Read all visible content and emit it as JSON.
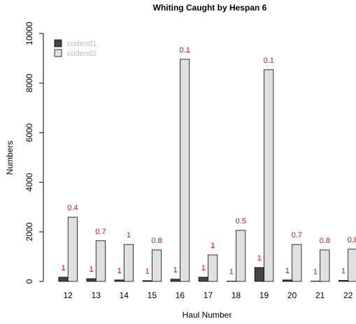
{
  "chart_data": {
    "type": "bar",
    "title": "Whiting Caught by Hespan 6",
    "xlabel": "Haul Number",
    "ylabel": "Numbers",
    "categories": [
      "12",
      "13",
      "14",
      "15",
      "16",
      "17",
      "18",
      "19",
      "20",
      "21",
      "22"
    ],
    "series": [
      {
        "name": "codend1",
        "color": "#444444",
        "values": [
          170,
          110,
          60,
          30,
          90,
          170,
          10,
          560,
          60,
          10,
          40
        ],
        "annotations": [
          "1",
          "1",
          "1",
          "1",
          "1",
          "1",
          "1",
          "1",
          "1",
          "1",
          "1"
        ]
      },
      {
        "name": "codend2",
        "color": "#e0e0e0",
        "values": [
          2590,
          1640,
          1490,
          1270,
          8960,
          1070,
          2060,
          8540,
          1490,
          1270,
          1300
        ],
        "annotations": [
          "0.4",
          "0.7",
          "1",
          "0.8",
          "0.1",
          "1",
          "0.5",
          "0.1",
          "0.7",
          "0.8",
          "0.8"
        ]
      }
    ],
    "annotation_color": "#ff0000",
    "legend_text_color": "#bbbbbb",
    "legend": "top-left",
    "ylim": [
      0,
      10000
    ],
    "yticks": [
      0,
      2000,
      4000,
      6000,
      8000,
      10000
    ]
  }
}
